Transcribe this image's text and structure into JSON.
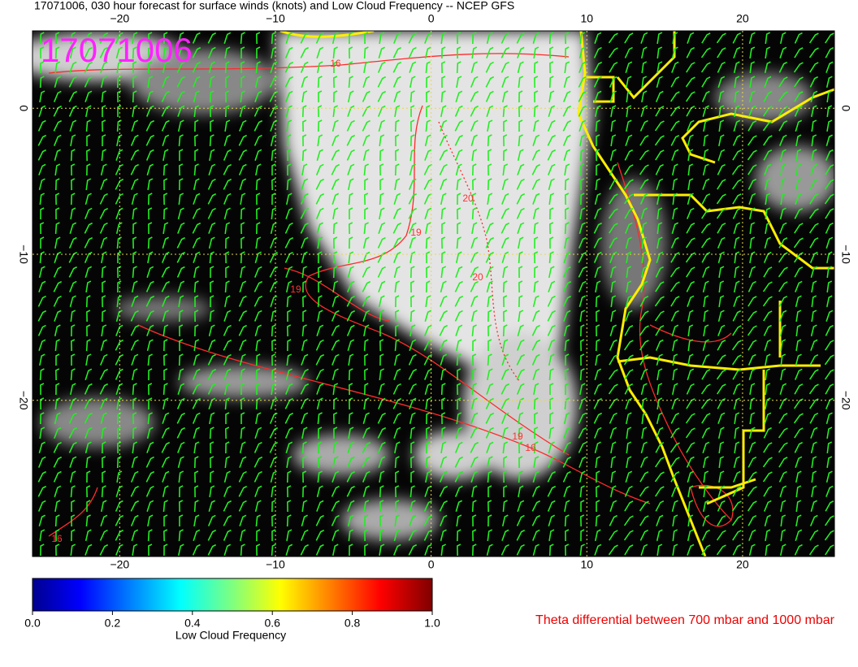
{
  "header": {
    "title": "17071006, 030 hour forecast for surface winds (knots) and Low Cloud Frequency -- NCEP GFS"
  },
  "map": {
    "stamp": "17071006",
    "xlim": [
      -25.6,
      25.9
    ],
    "ylim": [
      -30.7,
      5.3
    ],
    "xticks": [
      {
        "value": -20,
        "label": "−20"
      },
      {
        "value": -10,
        "label": "−10"
      },
      0,
      10,
      20
    ],
    "yticks": [
      0,
      {
        "value": -10,
        "label": "−10"
      },
      {
        "value": -20,
        "label": "−20"
      }
    ],
    "contour_labels": [
      16,
      19,
      20,
      20,
      19,
      16,
      19,
      16
    ]
  },
  "colorbar": {
    "label": "Low Cloud Frequency",
    "lim": [
      0,
      1
    ],
    "ticks": [
      {
        "value": 0,
        "label": "0.0"
      },
      0.2,
      0.4,
      0.6,
      0.8,
      {
        "value": 1,
        "label": "1.0"
      }
    ]
  },
  "note": "Theta differential between 700 mbar and 1000 mbar"
}
